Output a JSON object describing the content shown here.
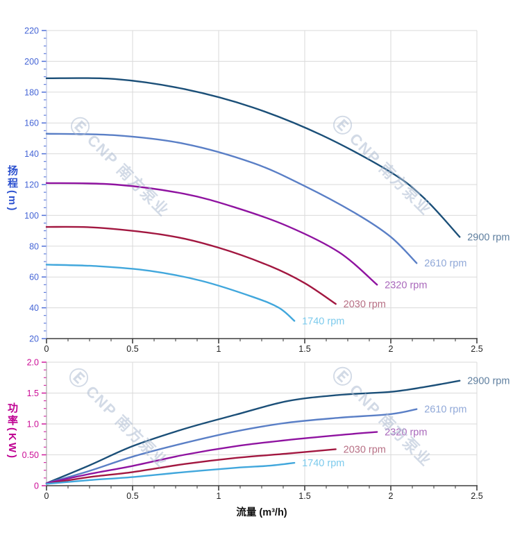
{
  "watermark": {
    "logo": "Ⓔ",
    "text": "CNP 南方泵业"
  },
  "chart_data": [
    {
      "type": "line",
      "name": "head-vs-flow",
      "title": "",
      "ylabel": "扬程(m)",
      "xlabel": "",
      "xlim": [
        0,
        2.5
      ],
      "ylim": [
        20,
        220
      ],
      "x_major_step": 0.5,
      "x_minor_step": 0.125,
      "y_major_step": 20,
      "y_minor_step": 5,
      "grid": true,
      "legend_position": "curve-ends",
      "x_ticks": {
        "values": [
          0,
          0.5,
          1,
          1.5,
          2,
          2.5
        ],
        "labels": [
          "0",
          "0.5",
          "1",
          "1.5",
          "2",
          "2.5"
        ]
      },
      "y_ticks": {
        "values": [
          20,
          40,
          60,
          80,
          100,
          120,
          140,
          160,
          180,
          200,
          220
        ],
        "labels": [
          "20",
          "40",
          "60",
          "80",
          "100",
          "120",
          "140",
          "160",
          "180",
          "200",
          "220"
        ]
      },
      "y_text_color": "#4565d6",
      "tick_color": "#4f6fd8",
      "y_axis_color": "#b9c3e4",
      "x_axis_color": "#3d3d3d",
      "x_text_color": "#222222",
      "series": [
        {
          "name": "2900 rpm",
          "color": "#1b4f78",
          "label_color": "#5f7f9f",
          "points": [
            [
              0,
              189
            ],
            [
              0.4,
              188.5
            ],
            [
              0.8,
              182
            ],
            [
              1.2,
              170
            ],
            [
              1.6,
              152
            ],
            [
              2.0,
              128
            ],
            [
              2.2,
              110.5
            ],
            [
              2.4,
              86
            ]
          ]
        },
        {
          "name": "2610 rpm",
          "color": "#5a7fc6",
          "label_color": "#90a8d8",
          "points": [
            [
              0,
              153
            ],
            [
              0.4,
              152
            ],
            [
              0.8,
              146.5
            ],
            [
              1.2,
              134
            ],
            [
              1.5,
              119
            ],
            [
              1.8,
              101
            ],
            [
              2.0,
              86
            ],
            [
              2.15,
              69
            ]
          ]
        },
        {
          "name": "2320 rpm",
          "color": "#8f13a0",
          "label_color": "#a968bb",
          "points": [
            [
              0,
              121
            ],
            [
              0.4,
              120
            ],
            [
              0.8,
              114
            ],
            [
              1.1,
              105
            ],
            [
              1.4,
              93
            ],
            [
              1.7,
              76
            ],
            [
              1.92,
              55
            ]
          ]
        },
        {
          "name": "2030 rpm",
          "color": "#a21740",
          "label_color": "#b76f84",
          "points": [
            [
              0,
              92.5
            ],
            [
              0.3,
              92
            ],
            [
              0.7,
              87
            ],
            [
              1.0,
              79
            ],
            [
              1.3,
              67
            ],
            [
              1.5,
              56
            ],
            [
              1.68,
              42.5
            ]
          ]
        },
        {
          "name": "1740 rpm",
          "color": "#41a7dc",
          "label_color": "#7ccaec",
          "points": [
            [
              0,
              68
            ],
            [
              0.3,
              67
            ],
            [
              0.6,
              64
            ],
            [
              0.9,
              57.5
            ],
            [
              1.2,
              47
            ],
            [
              1.35,
              40
            ],
            [
              1.44,
              31.5
            ]
          ]
        }
      ]
    },
    {
      "type": "line",
      "name": "power-vs-flow",
      "title": "",
      "ylabel": "功率(KW)",
      "xlabel": "流量 (m³/h)",
      "xlim": [
        0,
        2.5
      ],
      "ylim": [
        0,
        2
      ],
      "x_major_step": 0.5,
      "x_minor_step": 0.125,
      "y_major_step": 0.5,
      "y_minor_step": 0.125,
      "grid": true,
      "legend_position": "curve-ends",
      "x_ticks": {
        "values": [
          0,
          0.5,
          1,
          1.5,
          2,
          2.5
        ],
        "labels": [
          "0",
          "0.5",
          "1",
          "1.5",
          "2",
          "2.5"
        ]
      },
      "y_ticks": {
        "values": [
          0,
          0.5,
          1,
          1.5,
          2
        ],
        "labels": [
          "0",
          "0.50",
          "1.0",
          "1.5",
          "2.0"
        ]
      },
      "y_text_color": "#cb0d96",
      "tick_color": "#d0199d",
      "y_axis_color": "#a9a9a9",
      "x_axis_color": "#3d3d3d",
      "x_text_color": "#222222",
      "series": [
        {
          "name": "2900 rpm",
          "color": "#1b4f78",
          "label_color": "#5f7f9f",
          "points": [
            [
              0,
              0.04
            ],
            [
              0.25,
              0.33
            ],
            [
              0.5,
              0.64
            ],
            [
              0.8,
              0.92
            ],
            [
              1.1,
              1.15
            ],
            [
              1.4,
              1.37
            ],
            [
              1.7,
              1.47
            ],
            [
              2.0,
              1.52
            ],
            [
              2.2,
              1.6
            ],
            [
              2.4,
              1.7
            ]
          ]
        },
        {
          "name": "2610 rpm",
          "color": "#5a7fc6",
          "label_color": "#90a8d8",
          "points": [
            [
              0,
              0.04
            ],
            [
              0.25,
              0.24
            ],
            [
              0.5,
              0.47
            ],
            [
              0.8,
              0.69
            ],
            [
              1.1,
              0.88
            ],
            [
              1.4,
              1.02
            ],
            [
              1.7,
              1.1
            ],
            [
              2.0,
              1.16
            ],
            [
              2.15,
              1.24
            ]
          ]
        },
        {
          "name": "2320 rpm",
          "color": "#8f13a0",
          "label_color": "#a968bb",
          "points": [
            [
              0,
              0.04
            ],
            [
              0.25,
              0.19
            ],
            [
              0.5,
              0.32
            ],
            [
              0.8,
              0.5
            ],
            [
              1.1,
              0.64
            ],
            [
              1.4,
              0.74
            ],
            [
              1.7,
              0.82
            ],
            [
              1.92,
              0.87
            ]
          ]
        },
        {
          "name": "2030 rpm",
          "color": "#a21740",
          "label_color": "#b76f84",
          "points": [
            [
              0,
              0.03
            ],
            [
              0.25,
              0.14
            ],
            [
              0.5,
              0.22
            ],
            [
              0.8,
              0.35
            ],
            [
              1.1,
              0.45
            ],
            [
              1.4,
              0.52
            ],
            [
              1.68,
              0.59
            ]
          ]
        },
        {
          "name": "1740 rpm",
          "color": "#41a7dc",
          "label_color": "#7ccaec",
          "points": [
            [
              0,
              0.03
            ],
            [
              0.25,
              0.09
            ],
            [
              0.5,
              0.14
            ],
            [
              0.8,
              0.22
            ],
            [
              1.1,
              0.29
            ],
            [
              1.3,
              0.325
            ],
            [
              1.44,
              0.37
            ]
          ]
        }
      ]
    }
  ]
}
